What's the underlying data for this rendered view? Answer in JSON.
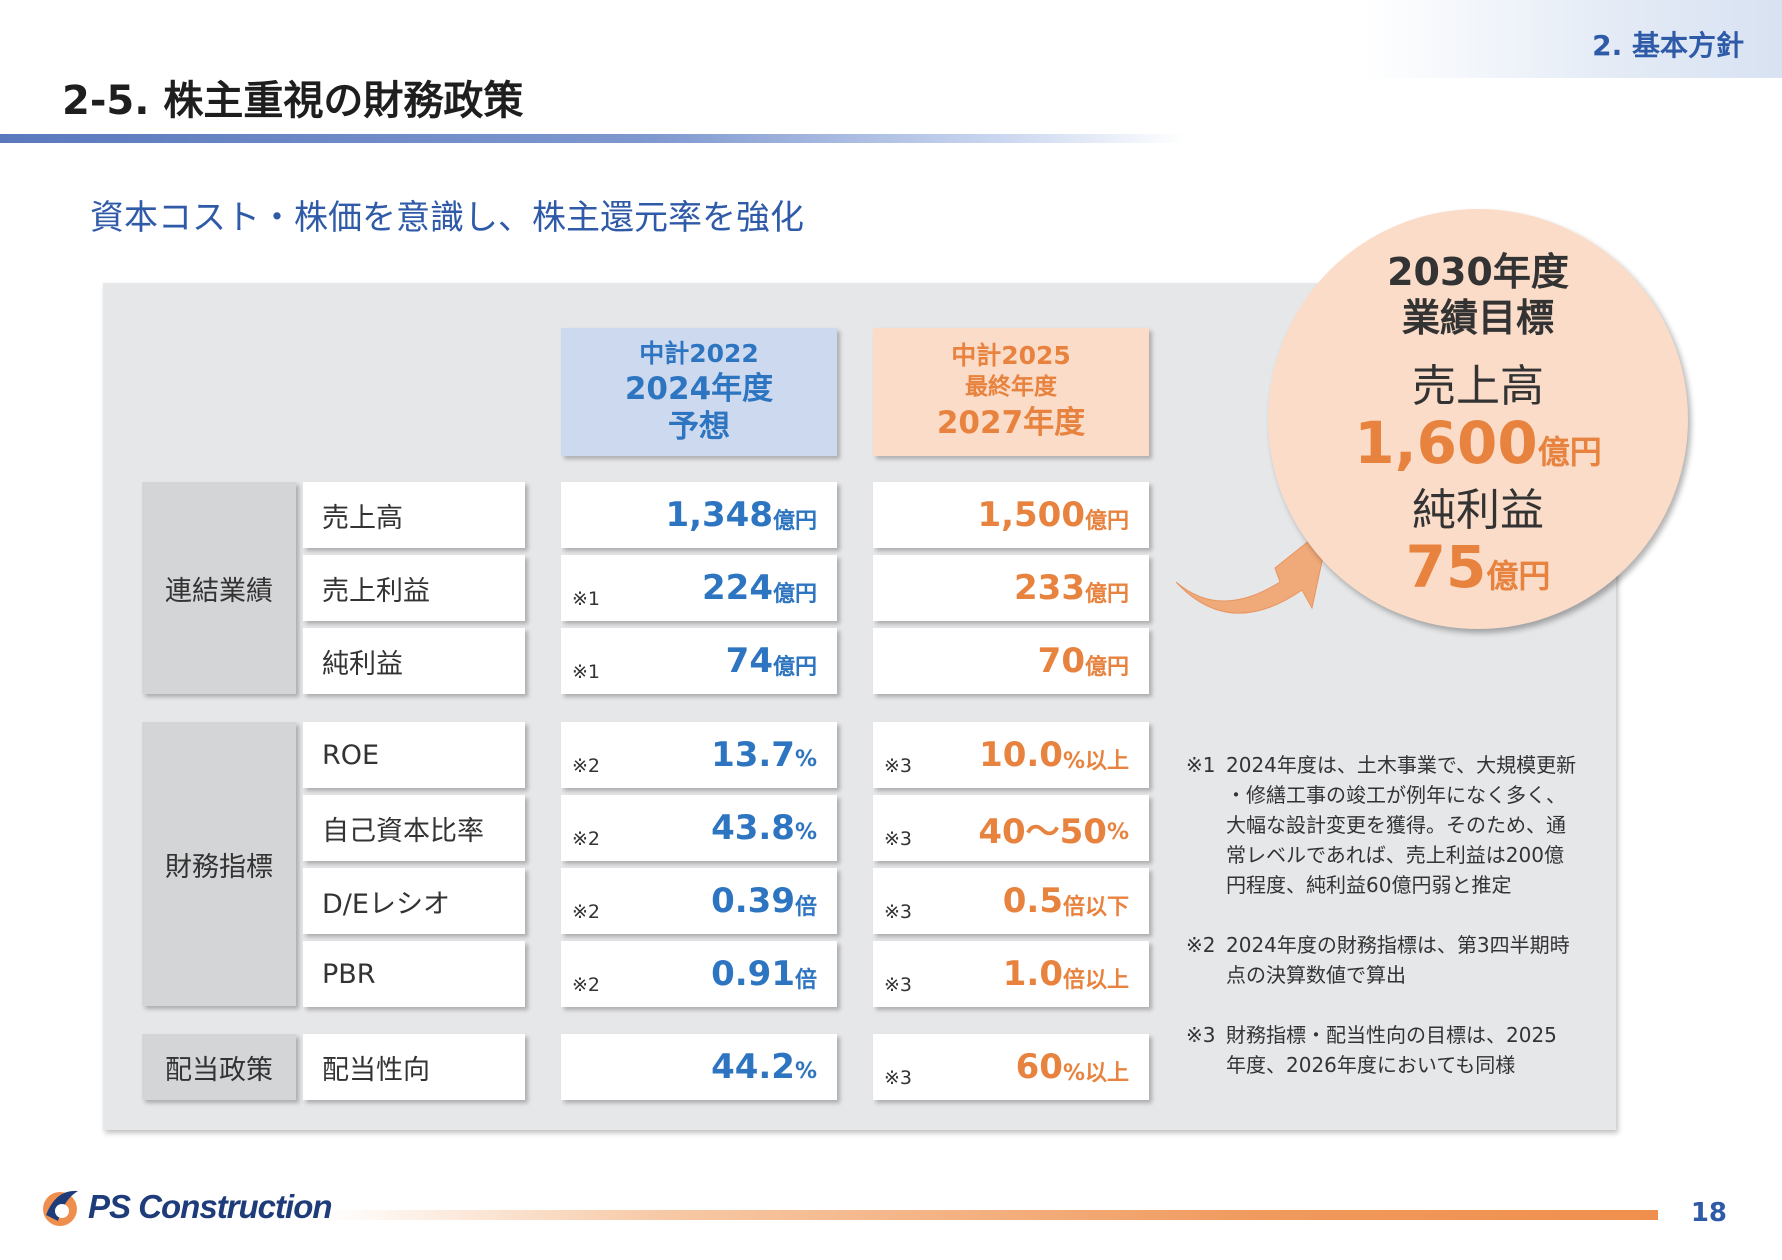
{
  "header": {
    "section_tag": "2. 基本方針",
    "title": "2-5. 株主重視の財務政策",
    "subtitle": "資本コスト・株価を意識し、株主還元率を強化"
  },
  "columns": {
    "plan2022": {
      "line1": "中計2022",
      "line2": "2024年度",
      "line3": "予想"
    },
    "plan2025": {
      "line1": "中計2025",
      "line2": "最終年度",
      "line3": "2027年度"
    }
  },
  "groups": {
    "consolidated": "連結業績",
    "financial": "財務指標",
    "dividend": "配当政策"
  },
  "rows": [
    {
      "label": "売上高",
      "v1_note": "",
      "v1": "1,348",
      "v1_unit": "億円",
      "v2_note": "",
      "v2": "1,500",
      "v2_unit": "億円"
    },
    {
      "label": "売上利益",
      "v1_note": "※1",
      "v1": "224",
      "v1_unit": "億円",
      "v2_note": "",
      "v2": "233",
      "v2_unit": "億円"
    },
    {
      "label": "純利益",
      "v1_note": "※1",
      "v1": "74",
      "v1_unit": "億円",
      "v2_note": "",
      "v2": "70",
      "v2_unit": "億円"
    },
    {
      "label": "ROE",
      "v1_note": "※2",
      "v1": "13.7",
      "v1_unit": "%",
      "v2_note": "※3",
      "v2": "10.0",
      "v2_unit": "%以上"
    },
    {
      "label": "自己資本比率",
      "v1_note": "※2",
      "v1": "43.8",
      "v1_unit": "%",
      "v2_note": "※3",
      "v2": "40～50",
      "v2_unit": "%"
    },
    {
      "label": "D/Eレシオ",
      "v1_note": "※2",
      "v1": "0.39",
      "v1_unit": "倍",
      "v2_note": "※3",
      "v2": "0.5",
      "v2_unit": "倍以下"
    },
    {
      "label": "PBR",
      "v1_note": "※2",
      "v1": "0.91",
      "v1_unit": "倍",
      "v2_note": "※3",
      "v2": "1.0",
      "v2_unit": "倍以上"
    },
    {
      "label": "配当性向",
      "v1_note": "",
      "v1": "44.2",
      "v1_unit": "%",
      "v2_note": "※3",
      "v2": "60",
      "v2_unit": "%以上"
    }
  ],
  "target_2030": {
    "title_line1": "2030年度",
    "title_line2": "業績目標",
    "sales_label": "売上高",
    "sales_value": "1,600",
    "sales_unit": "億円",
    "profit_label": "純利益",
    "profit_value": "75",
    "profit_unit": "億円"
  },
  "notes": [
    {
      "mark": "※1",
      "lines": [
        "2024年度は、土木事業で、大規模更新",
        "・修繕工事の竣工が例年になく多く、",
        "大幅な設計変更を獲得。そのため、通",
        "常レベルであれば、売上利益は200億",
        "円程度、純利益60億円弱と推定"
      ]
    },
    {
      "mark": "※2",
      "lines": [
        "2024年度の財務指標は、第3四半期時",
        "点の決算数値で算出"
      ]
    },
    {
      "mark": "※3",
      "lines": [
        "財務指標・配当性向の目標は、2025",
        "年度、2026年度においても同様"
      ]
    }
  ],
  "footer": {
    "company": "PS Construction",
    "page_number": "18"
  },
  "colors": {
    "blue": "#2d75c0",
    "orange": "#e8833f",
    "blue_head_bg": "#cdd9ef",
    "orange_head_bg": "#fadcc8"
  }
}
